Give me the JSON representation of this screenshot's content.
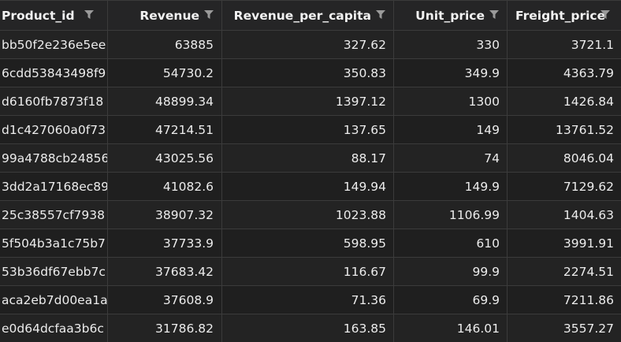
{
  "columns": [
    "Product_id",
    "Revenue",
    "Revenue_per_capita",
    "Unit_price",
    "Freight_price"
  ],
  "rows": [
    [
      "bb50f2e236e5ee",
      "63885",
      "327.62",
      "330",
      "3721.1"
    ],
    [
      "6cdd53843498f9",
      "54730.2",
      "350.83",
      "349.9",
      "4363.79"
    ],
    [
      "d6160fb7873f18",
      "48899.34",
      "1397.12",
      "1300",
      "1426.84"
    ],
    [
      "d1c427060a0f73",
      "47214.51",
      "137.65",
      "149",
      "13761.52"
    ],
    [
      "99a4788cb24856",
      "43025.56",
      "88.17",
      "74",
      "8046.04"
    ],
    [
      "3dd2a17168ec89",
      "41082.6",
      "149.94",
      "149.9",
      "7129.62"
    ],
    [
      "25c38557cf7938",
      "38907.32",
      "1023.88",
      "1106.99",
      "1404.63"
    ],
    [
      "5f504b3a1c75b7",
      "37733.9",
      "598.95",
      "610",
      "3991.91"
    ],
    [
      "53b36df67ebb7c",
      "37683.42",
      "116.67",
      "99.9",
      "2274.51"
    ],
    [
      "aca2eb7d00ea1a",
      "37608.9",
      "71.36",
      "69.9",
      "7211.86"
    ],
    [
      "e0d64dcfaa3b6c",
      "31786.82",
      "163.85",
      "146.01",
      "3557.27"
    ]
  ],
  "icons": {
    "filter": "filter-icon"
  },
  "colors": {
    "background": "#1e1e1e",
    "header_background": "#252526",
    "grid_line": "#3b3b3b",
    "text": "#ececec",
    "icon": "#9a9a9a"
  }
}
